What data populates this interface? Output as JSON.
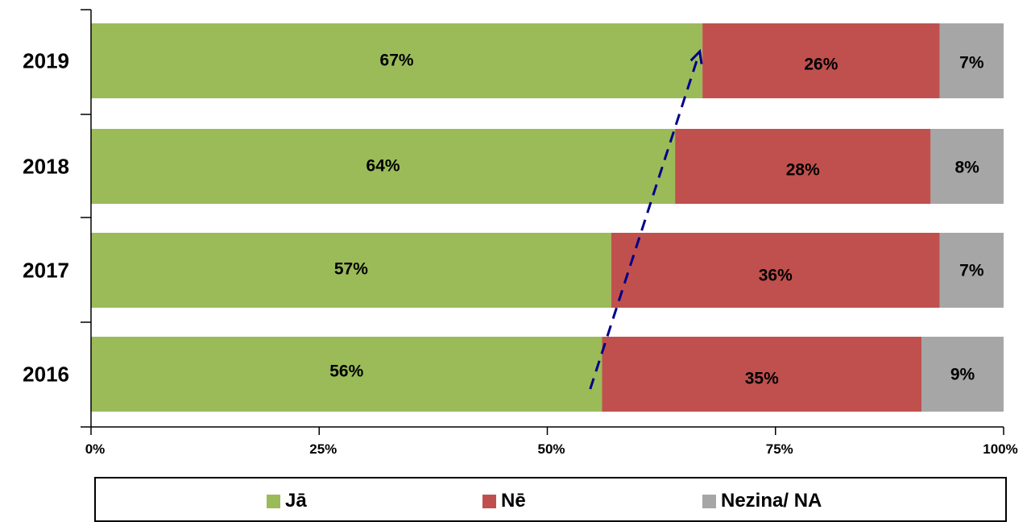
{
  "chart_data": {
    "type": "bar",
    "orientation": "horizontal",
    "stacked": "percent",
    "categories": [
      "2019",
      "2018",
      "2017",
      "2016"
    ],
    "series": [
      {
        "name": "Jā",
        "color": "#9BBB59",
        "values": [
          67,
          64,
          57,
          56
        ],
        "labels": [
          "67%",
          "64%",
          "57%",
          "56%"
        ]
      },
      {
        "name": "Nē",
        "color": "#C0504D",
        "values": [
          26,
          28,
          36,
          35
        ],
        "labels": [
          "26%",
          "28%",
          "36%",
          "35%"
        ]
      },
      {
        "name": "Nezina/ NA",
        "color": "#A6A6A6",
        "values": [
          7,
          8,
          7,
          9
        ],
        "labels": [
          "7%",
          "8%",
          "7%",
          "9%"
        ]
      }
    ],
    "xlim": [
      0,
      100
    ],
    "xticks": [
      "0%",
      "25%",
      "50%",
      "75%",
      "100%"
    ],
    "grid": false,
    "legend_position": "bottom",
    "annotation": {
      "type": "dashed-arrow",
      "color": "#00008B",
      "from": {
        "category": "2016",
        "x": 54.7
      },
      "to": {
        "category": "2019",
        "x": 66.7
      }
    }
  }
}
